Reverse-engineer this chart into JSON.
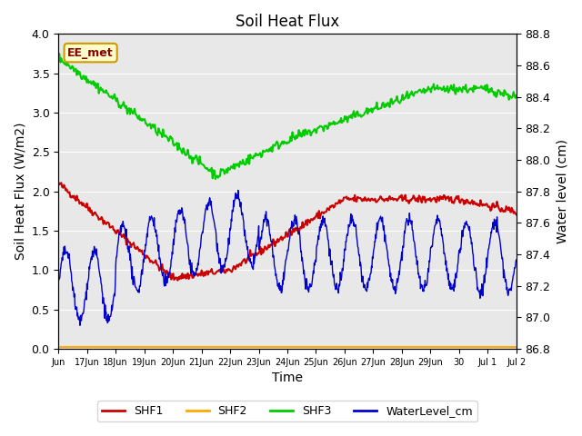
{
  "title": "Soil Heat Flux",
  "ylabel_left": "Soil Heat Flux (W/m2)",
  "ylabel_right": "Water level (cm)",
  "xlabel": "Time",
  "ylim_left": [
    0.0,
    4.0
  ],
  "ylim_right": [
    86.8,
    88.8
  ],
  "background_color": "#e8e8e8",
  "figure_background": "#ffffff",
  "annotation_text": "EE_met",
  "annotation_box_color": "#ffffcc",
  "annotation_border_color": "#cc9900",
  "colors": {
    "SHF1": "#cc0000",
    "SHF2": "#ffaa00",
    "SHF3": "#00cc00",
    "WaterLevel": "#0000cc"
  },
  "xtick_labels": [
    "Jun",
    "17Jun",
    "18Jun",
    "19Jun",
    "20Jun",
    "21Jun",
    "22Jun",
    "23Jun",
    "24Jun",
    "25Jun",
    "26Jun",
    "27Jun",
    "28Jun",
    "29Jun",
    "30",
    "Jul 1",
    "Jul 2"
  ],
  "yticks_left": [
    0.0,
    0.5,
    1.0,
    1.5,
    2.0,
    2.5,
    3.0,
    3.5,
    4.0
  ],
  "yticks_right": [
    86.8,
    87.0,
    87.2,
    87.4,
    87.6,
    87.8,
    88.0,
    88.2,
    88.4,
    88.6,
    88.8
  ]
}
